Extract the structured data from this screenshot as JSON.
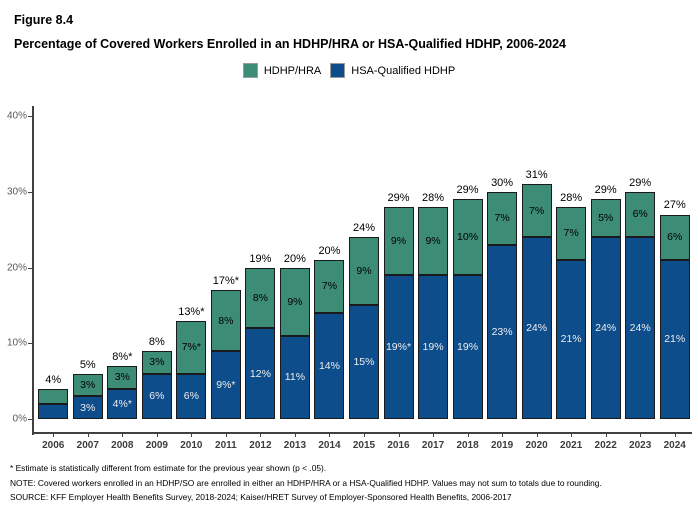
{
  "figure_label": "Figure 8.4",
  "title": "Percentage of Covered Workers Enrolled in an HDHP/HRA or HSA-Qualified HDHP, 2006-2024",
  "legend": {
    "items": [
      {
        "label": "HDHP/HRA",
        "color": "#3D8C75"
      },
      {
        "label": "HSA-Qualified HDHP",
        "color": "#0E4D8C"
      }
    ]
  },
  "y_axis": {
    "ticks": [
      "40%",
      "30%",
      "20%",
      "10%",
      "0%"
    ],
    "max": 40
  },
  "chart_data": {
    "type": "bar",
    "stacked": true,
    "title": "Percentage of Covered Workers Enrolled in an HDHP/HRA or HSA-Qualified HDHP, 2006-2024",
    "categories": [
      "2006",
      "2007",
      "2008",
      "2009",
      "2010",
      "2011",
      "2012",
      "2013",
      "2014",
      "2015",
      "2016",
      "2017",
      "2018",
      "2019",
      "2020",
      "2021",
      "2022",
      "2023",
      "2024"
    ],
    "series": [
      {
        "name": "HSA-Qualified HDHP",
        "color": "#0E4D8C",
        "values": [
          2,
          3,
          4,
          6,
          6,
          9,
          12,
          11,
          14,
          15,
          19,
          19,
          19,
          23,
          24,
          21,
          24,
          24,
          21
        ],
        "labels": [
          "",
          "3%",
          "4%*",
          "6%",
          "6%",
          "9%*",
          "12%",
          "11%",
          "14%",
          "15%",
          "19%*",
          "19%",
          "19%",
          "23%",
          "24%",
          "21%",
          "24%",
          "24%",
          "21%"
        ]
      },
      {
        "name": "HDHP/HRA",
        "color": "#3D8C75",
        "values": [
          2,
          3,
          3,
          3,
          7,
          8,
          8,
          9,
          7,
          9,
          9,
          9,
          10,
          7,
          7,
          7,
          5,
          6,
          6
        ],
        "labels": [
          "",
          "3%",
          "3%",
          "3%",
          "7%*",
          "8%",
          "8%",
          "9%",
          "7%",
          "9%",
          "9%",
          "9%",
          "10%",
          "7%",
          "7%",
          "7%",
          "5%",
          "6%",
          "6%"
        ]
      }
    ],
    "totals": [
      4,
      5,
      8,
      8,
      13,
      17,
      19,
      20,
      20,
      24,
      29,
      28,
      29,
      30,
      31,
      28,
      29,
      29,
      27
    ],
    "total_labels": [
      "4%",
      "5%",
      "8%*",
      "8%",
      "13%*",
      "17%*",
      "19%",
      "20%",
      "20%",
      "24%",
      "29%",
      "28%",
      "29%",
      "30%",
      "31%",
      "28%",
      "29%",
      "29%",
      "27%"
    ],
    "xlabel": "",
    "ylabel": "",
    "ylim": [
      0,
      40
    ],
    "grid": false,
    "legend_position": "top"
  },
  "footnotes": [
    "* Estimate is statistically different from estimate for the previous year shown (p < .05).",
    "NOTE: Covered workers enrolled in an HDHP/SO are enrolled in either an HDHP/HRA or a HSA-Qualified HDHP. Values may not sum to totals due to rounding.",
    "SOURCE: KFF Employer Health Benefits Survey, 2018-2024; Kaiser/HRET Survey of Employer-Sponsored Health Benefits, 2006-2017"
  ],
  "colors": {
    "hra": "#3D8C75",
    "hsa": "#0E4D8C",
    "axis": "#404040",
    "bar_border": "#1A1A1A",
    "hsa_label_text": "#EDEDED",
    "y_tick_text": "#595959"
  }
}
